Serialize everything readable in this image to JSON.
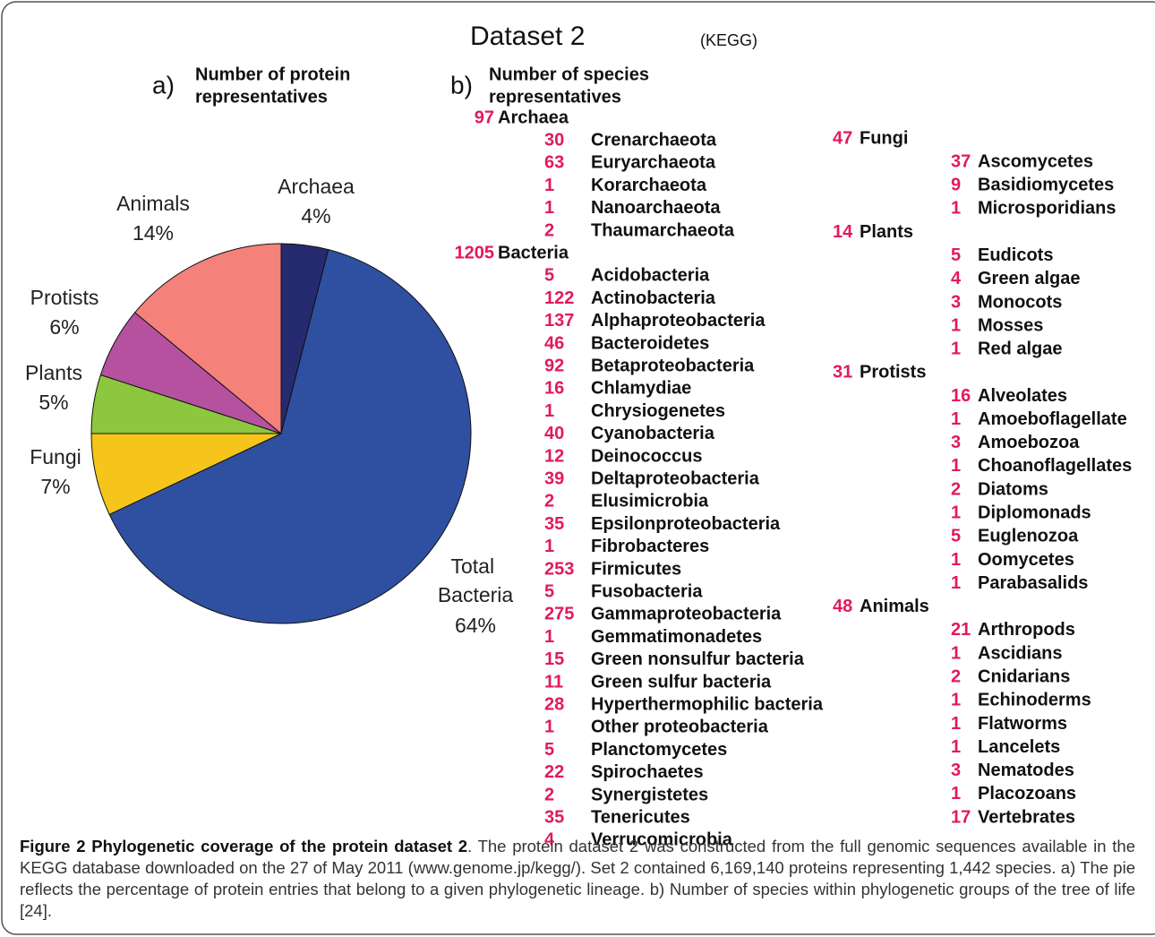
{
  "heading": {
    "title": "Dataset 2",
    "source": "(KEGG)"
  },
  "panel_a": {
    "label": "a)",
    "heading_lines": [
      "Number of protein",
      "representatives"
    ]
  },
  "panel_b": {
    "label": "b)",
    "heading_lines": [
      "Number of species",
      "representatives"
    ],
    "columns": [
      [
        {
          "count": 97,
          "name": "Archaea",
          "children": [
            {
              "count": 30,
              "name": "Crenarchaeota"
            },
            {
              "count": 63,
              "name": "Euryarchaeota"
            },
            {
              "count": 1,
              "name": "Korarchaeota"
            },
            {
              "count": 1,
              "name": "Nanoarchaeota"
            },
            {
              "count": 2,
              "name": "Thaumarchaeota"
            }
          ]
        },
        {
          "count": 1205,
          "name": "Bacteria",
          "children": [
            {
              "count": 5,
              "name": "Acidobacteria"
            },
            {
              "count": 122,
              "name": "Actinobacteria"
            },
            {
              "count": 137,
              "name": "Alphaproteobacteria"
            },
            {
              "count": 46,
              "name": "Bacteroidetes"
            },
            {
              "count": 92,
              "name": "Betaproteobacteria"
            },
            {
              "count": 16,
              "name": "Chlamydiae"
            },
            {
              "count": 1,
              "name": "Chrysiogenetes"
            },
            {
              "count": 40,
              "name": "Cyanobacteria"
            },
            {
              "count": 12,
              "name": "Deinococcus"
            },
            {
              "count": 39,
              "name": "Deltaproteobacteria"
            },
            {
              "count": 2,
              "name": "Elusimicrobia"
            },
            {
              "count": 35,
              "name": "Epsilonproteobacteria"
            },
            {
              "count": 1,
              "name": "Fibrobacteres"
            },
            {
              "count": 253,
              "name": "Firmicutes"
            },
            {
              "count": 5,
              "name": "Fusobacteria"
            },
            {
              "count": 275,
              "name": "Gammaproteobacteria"
            },
            {
              "count": 1,
              "name": "Gemmatimonadetes"
            },
            {
              "count": 15,
              "name": "Green nonsulfur bacteria"
            },
            {
              "count": 11,
              "name": "Green sulfur bacteria"
            },
            {
              "count": 28,
              "name": "Hyperthermophilic bacteria"
            },
            {
              "count": 1,
              "name": "Other proteobacteria"
            },
            {
              "count": 5,
              "name": "Planctomycetes"
            },
            {
              "count": 22,
              "name": "Spirochaetes"
            },
            {
              "count": 2,
              "name": "Synergistetes"
            },
            {
              "count": 35,
              "name": "Tenericutes"
            },
            {
              "count": 4,
              "name": "Verrucomicrobia"
            }
          ]
        }
      ],
      [
        {
          "count": 47,
          "name": "Fungi",
          "children": [
            {
              "count": 37,
              "name": "Ascomycetes"
            },
            {
              "count": 9,
              "name": "Basidiomycetes"
            },
            {
              "count": 1,
              "name": "Microsporidians"
            }
          ]
        },
        {
          "count": 14,
          "name": "Plants",
          "children": [
            {
              "count": 5,
              "name": "Eudicots"
            },
            {
              "count": 4,
              "name": "Green algae"
            },
            {
              "count": 3,
              "name": "Monocots"
            },
            {
              "count": 1,
              "name": "Mosses"
            },
            {
              "count": 1,
              "name": "Red algae"
            }
          ]
        },
        {
          "count": 31,
          "name": "Protists",
          "children": [
            {
              "count": 16,
              "name": "Alveolates"
            },
            {
              "count": 1,
              "name": "Amoeboflagellate"
            },
            {
              "count": 3,
              "name": "Amoebozoa"
            },
            {
              "count": 1,
              "name": "Choanoflagellates"
            },
            {
              "count": 2,
              "name": "Diatoms"
            },
            {
              "count": 1,
              "name": "Diplomonads"
            },
            {
              "count": 5,
              "name": "Euglenozoa"
            },
            {
              "count": 1,
              "name": "Oomycetes"
            },
            {
              "count": 1,
              "name": "Parabasalids"
            }
          ]
        },
        {
          "count": 48,
          "name": "Animals",
          "children": [
            {
              "count": 21,
              "name": "Arthropods"
            },
            {
              "count": 1,
              "name": "Ascidians"
            },
            {
              "count": 2,
              "name": "Cnidarians"
            },
            {
              "count": 1,
              "name": "Echinoderms"
            },
            {
              "count": 1,
              "name": "Flatworms"
            },
            {
              "count": 1,
              "name": "Lancelets"
            },
            {
              "count": 3,
              "name": "Nematodes"
            },
            {
              "count": 1,
              "name": "Placozoans"
            },
            {
              "count": 17,
              "name": "Vertebrates"
            }
          ]
        }
      ]
    ]
  },
  "chart_data": {
    "type": "pie",
    "categories": [
      "Archaea",
      "Total Bacteria",
      "Fungi",
      "Plants",
      "Protists",
      "Animals"
    ],
    "values": [
      4,
      64,
      7,
      5,
      6,
      14
    ],
    "value_labels": [
      "4%",
      "64%",
      "7%",
      "5%",
      "6%",
      "14%"
    ],
    "colors": [
      "#262a6e",
      "#2f4fa0",
      "#f5c51c",
      "#8dc63f",
      "#b5519f",
      "#f4817a"
    ]
  },
  "caption": {
    "label": "Figure 2 Phylogenetic coverage of the protein dataset 2",
    "text": ". The protein dataset 2 was constructed from the full genomic sequences available in the KEGG database downloaded on the 27 of May 2011 (www.genome.jp/kegg/). Set 2 contained 6,169,140 proteins representing 1,442 species. a) The pie reflects the percentage of protein entries that belong to a given phylogenetic lineage. b) Number of species within phylogenetic groups of the tree of life [24]."
  }
}
